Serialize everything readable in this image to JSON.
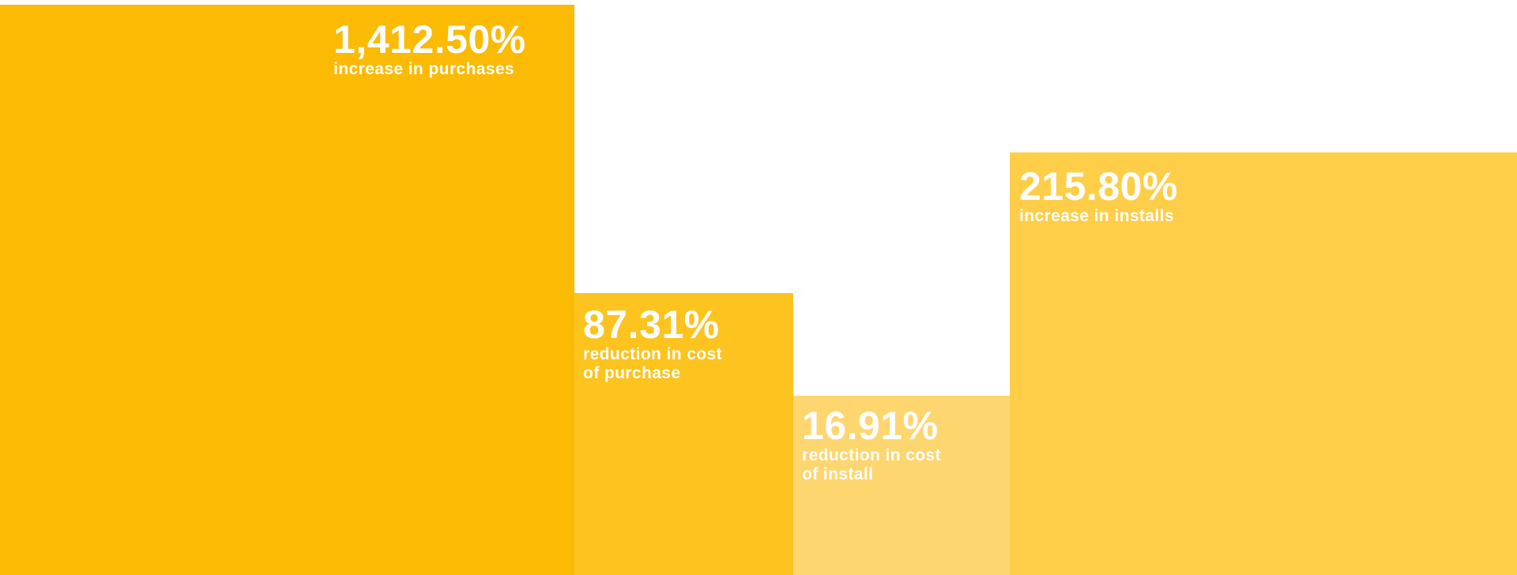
{
  "stats": [
    {
      "value": "1,412.50%",
      "lines": [
        "increase in purchases"
      ]
    },
    {
      "value": "87.31%",
      "lines": [
        "reduction in cost",
        "of purchase"
      ]
    },
    {
      "value": "16.91%",
      "lines": [
        "reduction in cost",
        "of install"
      ]
    },
    {
      "value": "215.80%",
      "lines": [
        "increase in installs"
      ]
    }
  ]
}
